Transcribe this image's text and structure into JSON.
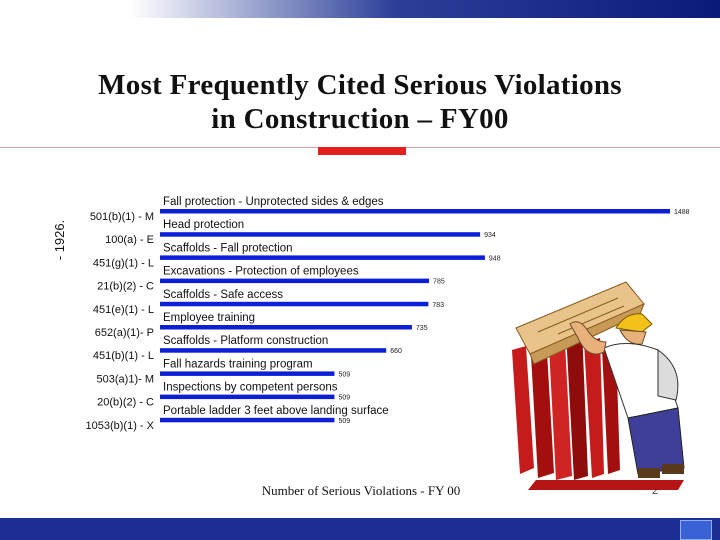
{
  "slide": {
    "title_line1": "Most Frequently Cited Serious Violations",
    "title_line2": "in Construction – FY00",
    "page_number": "2"
  },
  "chart_data": {
    "type": "bar",
    "orientation": "horizontal",
    "xlabel": "Number of Serious Violations - FY 00",
    "side_label": "- 1926.",
    "categories": [
      "501(b)(1) - M",
      "100(a) - E",
      "451(g)(1) - L",
      "21(b)(2) - C",
      "451(e)(1) - L",
      "652(a)(1)- P",
      "451(b)(1) - L",
      "503(a)1)- M",
      "20(b)(2) - C",
      "1053(b)(1) - X"
    ],
    "descriptions": [
      "Fall protection - Unprotected sides & edges",
      "Head protection",
      "Scaffolds - Fall protection",
      "Excavations - Protection of employees",
      "Scaffolds - Safe access",
      "Employee training",
      "Scaffolds - Platform construction",
      "Fall hazards training program",
      "Inspections by competent persons",
      "Portable ladder 3 feet above landing surface"
    ],
    "values": [
      1488,
      934,
      948,
      785,
      783,
      735,
      660,
      509,
      509,
      509
    ],
    "value_labels": [
      "1488",
      "934",
      "948",
      "785",
      "783",
      "735",
      "660",
      "509",
      "509",
      "509"
    ],
    "bar_color": "#0a1fd6"
  }
}
